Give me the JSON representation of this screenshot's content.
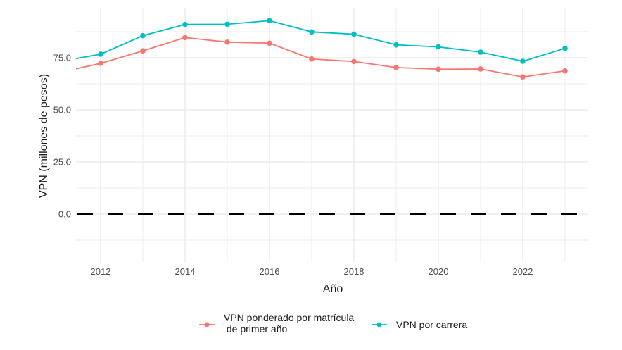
{
  "chart_data": {
    "type": "line",
    "title": "",
    "xlabel": "Año",
    "ylabel": "VPN (millones de pesos)",
    "xlim": [
      2011.42,
      2023.55
    ],
    "ylim": [
      -23,
      98
    ],
    "x_ticks": [
      2012,
      2014,
      2016,
      2018,
      2020,
      2022
    ],
    "x_tick_labels": [
      "2012",
      "2014",
      "2016",
      "2018",
      "2020",
      "2022"
    ],
    "y_ticks": [
      0,
      25,
      50,
      75
    ],
    "y_tick_labels": [
      "0.0",
      "25.0",
      "50.0",
      "75.0"
    ],
    "grid": true,
    "reference_line": {
      "y": 0,
      "style": "dashed",
      "color": "#000000"
    },
    "legend_position": "bottom",
    "x": [
      2011,
      2012,
      2013,
      2014,
      2015,
      2016,
      2017,
      2018,
      2019,
      2020,
      2021,
      2022,
      2023
    ],
    "series": [
      {
        "name": "VPN ponderado por matrícula de primer año",
        "legend_lines": [
          "VPN ponderado por matrícula",
          " de primer año"
        ],
        "color": "#F8766D",
        "values": [
          67.8,
          72.3,
          78.3,
          84.7,
          82.5,
          82.0,
          74.4,
          73.2,
          70.3,
          69.5,
          69.6,
          65.8,
          68.7
        ]
      },
      {
        "name": "VPN por carrera",
        "legend_lines": [
          "VPN por carrera"
        ],
        "color": "#00BFC4",
        "values": [
          73.1,
          76.7,
          85.6,
          91.0,
          91.1,
          92.8,
          87.4,
          86.3,
          81.2,
          80.2,
          77.7,
          73.3,
          79.5
        ]
      }
    ]
  }
}
